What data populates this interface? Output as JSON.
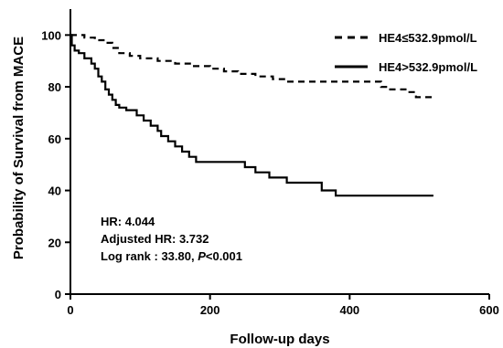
{
  "chart_data": {
    "type": "line",
    "xlabel": "Follow-up days",
    "ylabel": "Probability of Survival from MACE",
    "xlim": [
      0,
      600
    ],
    "ylim": [
      0,
      110
    ],
    "xticks": [
      0,
      200,
      400,
      600
    ],
    "yticks": [
      0,
      20,
      40,
      60,
      80,
      100
    ],
    "grid": false,
    "legend_position": "top-right",
    "series": [
      {
        "name": "HE4≤532.9pmol/L",
        "line_style": "dashed",
        "color": "#000000",
        "points": [
          [
            0,
            100
          ],
          [
            20,
            100
          ],
          [
            20,
            99
          ],
          [
            35,
            99
          ],
          [
            35,
            98
          ],
          [
            50,
            98
          ],
          [
            50,
            97
          ],
          [
            60,
            97
          ],
          [
            60,
            95
          ],
          [
            70,
            95
          ],
          [
            70,
            93
          ],
          [
            85,
            93
          ],
          [
            85,
            92
          ],
          [
            100,
            92
          ],
          [
            100,
            91
          ],
          [
            125,
            91
          ],
          [
            125,
            90
          ],
          [
            150,
            90
          ],
          [
            150,
            89
          ],
          [
            175,
            89
          ],
          [
            175,
            88
          ],
          [
            200,
            88
          ],
          [
            200,
            87
          ],
          [
            220,
            87
          ],
          [
            220,
            86
          ],
          [
            240,
            86
          ],
          [
            240,
            85
          ],
          [
            265,
            85
          ],
          [
            265,
            84
          ],
          [
            290,
            84
          ],
          [
            290,
            83
          ],
          [
            310,
            83
          ],
          [
            310,
            82
          ],
          [
            445,
            82
          ],
          [
            445,
            80
          ],
          [
            455,
            80
          ],
          [
            455,
            79
          ],
          [
            480,
            79
          ],
          [
            480,
            78
          ],
          [
            495,
            78
          ],
          [
            495,
            76
          ],
          [
            520,
            76
          ]
        ]
      },
      {
        "name": "HE4>532.9pmol/L",
        "line_style": "solid",
        "color": "#000000",
        "points": [
          [
            0,
            100
          ],
          [
            2,
            100
          ],
          [
            2,
            96
          ],
          [
            6,
            96
          ],
          [
            6,
            94
          ],
          [
            12,
            94
          ],
          [
            12,
            93
          ],
          [
            20,
            93
          ],
          [
            20,
            91
          ],
          [
            30,
            91
          ],
          [
            30,
            89
          ],
          [
            35,
            89
          ],
          [
            35,
            87
          ],
          [
            40,
            87
          ],
          [
            40,
            84
          ],
          [
            45,
            84
          ],
          [
            45,
            82
          ],
          [
            50,
            82
          ],
          [
            50,
            79
          ],
          [
            55,
            79
          ],
          [
            55,
            77
          ],
          [
            60,
            77
          ],
          [
            60,
            75
          ],
          [
            65,
            75
          ],
          [
            65,
            73
          ],
          [
            70,
            73
          ],
          [
            70,
            72
          ],
          [
            80,
            72
          ],
          [
            80,
            71
          ],
          [
            95,
            71
          ],
          [
            95,
            69
          ],
          [
            105,
            69
          ],
          [
            105,
            67
          ],
          [
            115,
            67
          ],
          [
            115,
            65
          ],
          [
            125,
            65
          ],
          [
            125,
            63
          ],
          [
            130,
            63
          ],
          [
            130,
            61
          ],
          [
            140,
            61
          ],
          [
            140,
            59
          ],
          [
            150,
            59
          ],
          [
            150,
            57
          ],
          [
            160,
            57
          ],
          [
            160,
            55
          ],
          [
            170,
            55
          ],
          [
            170,
            53
          ],
          [
            180,
            53
          ],
          [
            180,
            51
          ],
          [
            250,
            51
          ],
          [
            250,
            49
          ],
          [
            265,
            49
          ],
          [
            265,
            47
          ],
          [
            285,
            47
          ],
          [
            285,
            45
          ],
          [
            310,
            45
          ],
          [
            310,
            43
          ],
          [
            360,
            43
          ],
          [
            360,
            40
          ],
          [
            380,
            40
          ],
          [
            380,
            38
          ],
          [
            520,
            38
          ]
        ]
      }
    ],
    "annotations": [
      {
        "text": "HR: 4.044"
      },
      {
        "text": "Adjusted HR: 3.732"
      },
      {
        "text": "Log rank : 33.80, ",
        "italic_part": "P",
        "suffix": "<0.001"
      }
    ]
  }
}
